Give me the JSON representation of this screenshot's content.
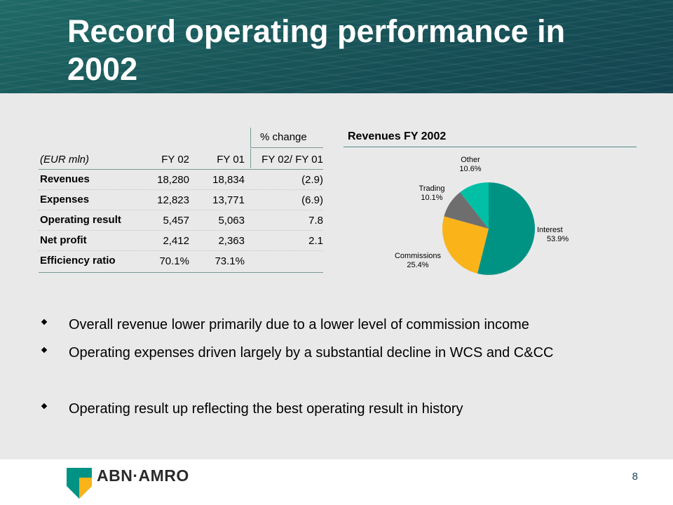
{
  "slide": {
    "title": "Record operating performance in 2002",
    "page_number": "8"
  },
  "table": {
    "group_header": "% change",
    "units_label": "(EUR mln)",
    "columns": [
      "FY 02",
      "FY 01",
      "FY 02/ FY 01"
    ],
    "rows": [
      {
        "label": "Revenues",
        "fy02": "18,280",
        "fy01": "18,834",
        "change": "(2.9)"
      },
      {
        "label": "Expenses",
        "fy02": "12,823",
        "fy01": "13,771",
        "change": "(6.9)"
      },
      {
        "label": "Operating result",
        "fy02": "5,457",
        "fy01": "5,063",
        "change": "7.8"
      },
      {
        "label": "Net profit",
        "fy02": "2,412",
        "fy01": "2,363",
        "change": "2.1"
      },
      {
        "label": "Efficiency ratio",
        "fy02": "70.1%",
        "fy01": "73.1%",
        "change": ""
      }
    ]
  },
  "chart_data": {
    "type": "pie",
    "title": "Revenues FY 2002",
    "slices": [
      {
        "name": "Interest",
        "value": 53.9,
        "label": "53.9%",
        "color": "#009384"
      },
      {
        "name": "Commissions",
        "value": 25.4,
        "label": "25.4%",
        "color": "#fab319"
      },
      {
        "name": "Trading",
        "value": 10.1,
        "label": "10.1%",
        "color": "#6e6e6e"
      },
      {
        "name": "Other",
        "value": 10.6,
        "label": "10.6%",
        "color": "#00bfa5"
      }
    ]
  },
  "bullets": [
    "Overall revenue lower primarily due to a lower level of commission income",
    "Operating expenses driven largely by a substantial decline in WCS and C&CC",
    "Operating result up reflecting the best operating result in history"
  ],
  "footer": {
    "logo_text": "ABN·AMRO",
    "logo_colors": {
      "green": "#009384",
      "yellow": "#fab319"
    }
  }
}
